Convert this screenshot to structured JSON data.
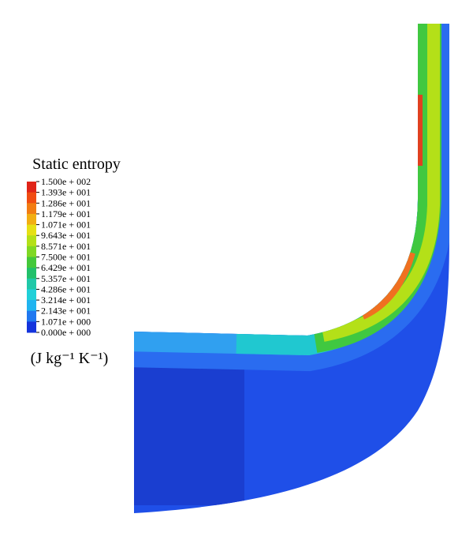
{
  "legend": {
    "title": "Static entropy",
    "labels": [
      "1.500e + 002",
      "1.393e + 001",
      "1.286e + 001",
      "1.179e + 001",
      "1.071e + 001",
      "9.643e + 001",
      "8.571e + 001",
      "7.500e + 001",
      "6.429e + 001",
      "5.357e + 001",
      "4.286e + 001",
      "3.214e + 001",
      "2.143e + 001",
      "1.071e + 000",
      "0.000e + 000"
    ],
    "colors": [
      "#e02418",
      "#f04c12",
      "#f27c12",
      "#f2ae12",
      "#e6e014",
      "#b4e018",
      "#80d824",
      "#44c83a",
      "#22c06a",
      "#20c8a8",
      "#20d0d8",
      "#20b4f0",
      "#2078f0",
      "#1434dc"
    ],
    "unit": "(J kg⁻¹ K⁻¹)"
  }
}
